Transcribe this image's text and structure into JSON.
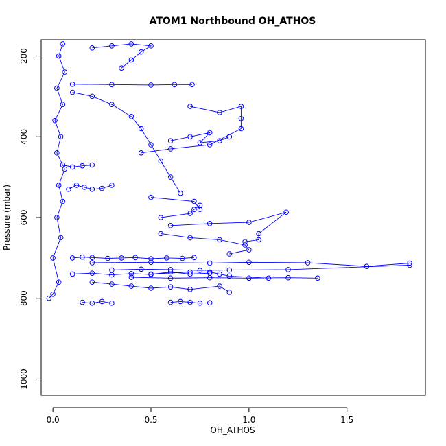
{
  "chart_data": {
    "type": "scatter",
    "title": "ATOM1 Northbound OH_ATHOS",
    "xlabel": "OH_ATHOS",
    "ylabel": "Pressure (mbar)",
    "xlim": [
      -0.06,
      1.9
    ],
    "ylim": [
      1040,
      160
    ],
    "y_reversed": true,
    "x_ticks": [
      0.0,
      0.5,
      1.0,
      1.5
    ],
    "x_tick_labels": [
      "0.0",
      "0.5",
      "1.0",
      "1.5"
    ],
    "y_ticks": [
      200,
      400,
      600,
      800,
      1000
    ],
    "y_tick_labels": [
      "200",
      "400",
      "600",
      "800",
      "1000"
    ],
    "marker": "open-circle",
    "connect_points": true,
    "grid": false,
    "colors": {
      "series": "#0000ff",
      "frame": "#000000"
    },
    "series": [
      {
        "values_xy": [
          [
            -0.02,
            800
          ],
          [
            0.0,
            790
          ],
          [
            0.03,
            760
          ],
          [
            0.0,
            700
          ],
          [
            0.04,
            650
          ],
          [
            0.02,
            600
          ],
          [
            0.05,
            560
          ],
          [
            0.03,
            520
          ],
          [
            0.06,
            480
          ],
          [
            0.02,
            440
          ],
          [
            0.04,
            400
          ],
          [
            0.01,
            360
          ],
          [
            0.05,
            320
          ],
          [
            0.02,
            280
          ],
          [
            0.06,
            240
          ],
          [
            0.03,
            200
          ],
          [
            0.05,
            170
          ]
        ]
      },
      {
        "values_xy": [
          [
            0.1,
            700
          ],
          [
            0.15,
            698
          ],
          [
            0.2,
            699
          ],
          [
            0.28,
            701
          ],
          [
            0.35,
            700
          ],
          [
            0.42,
            699
          ],
          [
            0.5,
            702
          ],
          [
            0.58,
            700
          ],
          [
            0.66,
            701
          ],
          [
            0.72,
            699
          ]
        ]
      },
      {
        "values_xy": [
          [
            0.3,
            730
          ],
          [
            0.45,
            728
          ],
          [
            0.6,
            729
          ],
          [
            0.75,
            731
          ],
          [
            0.9,
            730
          ],
          [
            1.2,
            729
          ],
          [
            1.82,
            718
          ]
        ]
      },
      {
        "values_xy": [
          [
            0.2,
            712
          ],
          [
            0.5,
            711
          ],
          [
            0.8,
            713
          ],
          [
            1.0,
            711
          ],
          [
            1.3,
            712
          ],
          [
            1.6,
            721
          ],
          [
            1.82,
            713
          ]
        ]
      },
      {
        "values_xy": [
          [
            0.4,
            748
          ],
          [
            0.6,
            750
          ],
          [
            0.8,
            749
          ],
          [
            1.0,
            750
          ],
          [
            1.2,
            749
          ],
          [
            1.35,
            750
          ]
        ]
      },
      {
        "values_xy": [
          [
            0.5,
            740
          ],
          [
            0.7,
            735
          ],
          [
            0.8,
            735
          ],
          [
            0.85,
            740
          ],
          [
            0.9,
            745
          ],
          [
            1.1,
            750
          ]
        ]
      },
      {
        "values_xy": [
          [
            0.1,
            270
          ],
          [
            0.3,
            271
          ],
          [
            0.5,
            272
          ],
          [
            0.62,
            271
          ],
          [
            0.71,
            271
          ]
        ]
      },
      {
        "values_xy": [
          [
            0.7,
            325
          ],
          [
            0.85,
            340
          ],
          [
            0.96,
            325
          ],
          [
            0.96,
            355
          ],
          [
            0.96,
            380
          ],
          [
            0.8,
            420
          ],
          [
            0.6,
            430
          ],
          [
            0.45,
            440
          ]
        ]
      },
      {
        "values_xy": [
          [
            0.5,
            550
          ],
          [
            0.72,
            560
          ],
          [
            0.75,
            580
          ],
          [
            0.75,
            570
          ],
          [
            0.72,
            580
          ],
          [
            0.7,
            590
          ],
          [
            0.55,
            600
          ]
        ]
      },
      {
        "values_xy": [
          [
            0.6,
            620
          ],
          [
            0.8,
            615
          ],
          [
            1.0,
            612
          ],
          [
            1.19,
            587
          ],
          [
            1.05,
            640
          ],
          [
            1.05,
            655
          ],
          [
            0.98,
            660
          ]
        ]
      },
      {
        "values_xy": [
          [
            0.55,
            640
          ],
          [
            0.7,
            650
          ],
          [
            0.85,
            655
          ],
          [
            0.98,
            668
          ],
          [
            1.0,
            680
          ],
          [
            0.9,
            690
          ]
        ]
      },
      {
        "values_xy": [
          [
            0.2,
            760
          ],
          [
            0.3,
            765
          ],
          [
            0.4,
            770
          ],
          [
            0.5,
            775
          ],
          [
            0.6,
            772
          ],
          [
            0.7,
            778
          ],
          [
            0.85,
            770
          ],
          [
            0.9,
            785
          ]
        ]
      },
      {
        "values_xy": [
          [
            0.6,
            810
          ],
          [
            0.65,
            808
          ],
          [
            0.7,
            810
          ],
          [
            0.75,
            812
          ],
          [
            0.8,
            811
          ]
        ]
      },
      {
        "values_xy": [
          [
            0.15,
            810
          ],
          [
            0.2,
            812
          ],
          [
            0.25,
            808
          ],
          [
            0.3,
            812
          ]
        ]
      },
      {
        "values_xy": [
          [
            0.1,
            290
          ],
          [
            0.2,
            300
          ],
          [
            0.3,
            320
          ],
          [
            0.4,
            350
          ],
          [
            0.45,
            380
          ],
          [
            0.5,
            420
          ],
          [
            0.55,
            460
          ],
          [
            0.6,
            500
          ],
          [
            0.65,
            540
          ]
        ]
      },
      {
        "values_xy": [
          [
            0.2,
            180
          ],
          [
            0.3,
            175
          ],
          [
            0.4,
            170
          ],
          [
            0.5,
            175
          ],
          [
            0.45,
            190
          ],
          [
            0.4,
            210
          ],
          [
            0.35,
            230
          ]
        ]
      },
      {
        "values_xy": [
          [
            0.6,
            410
          ],
          [
            0.7,
            400
          ],
          [
            0.8,
            390
          ],
          [
            0.75,
            415
          ],
          [
            0.85,
            410
          ],
          [
            0.9,
            400
          ]
        ]
      },
      {
        "values_xy": [
          [
            0.08,
            530
          ],
          [
            0.12,
            520
          ],
          [
            0.16,
            525
          ],
          [
            0.2,
            530
          ],
          [
            0.25,
            528
          ],
          [
            0.3,
            520
          ]
        ]
      },
      {
        "values_xy": [
          [
            0.05,
            470
          ],
          [
            0.1,
            475
          ],
          [
            0.15,
            472
          ],
          [
            0.2,
            470
          ]
        ]
      },
      {
        "values_xy": [
          [
            0.1,
            740
          ],
          [
            0.2,
            738
          ],
          [
            0.3,
            742
          ],
          [
            0.4,
            739
          ],
          [
            0.5,
            741
          ],
          [
            0.6,
            735
          ],
          [
            0.7,
            740
          ],
          [
            0.8,
            738
          ]
        ]
      }
    ]
  }
}
